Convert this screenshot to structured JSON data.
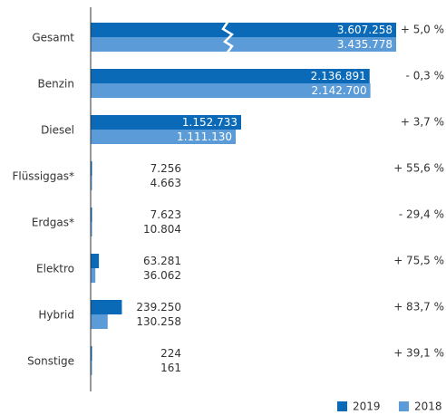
{
  "chart_data": {
    "type": "bar",
    "orientation": "horizontal",
    "categories": [
      "Gesamt",
      "Benzin",
      "Diesel",
      "Flüssiggas*",
      "Erdgas*",
      "Elektro",
      "Hybrid",
      "Sonstige"
    ],
    "series": [
      {
        "name": "2019",
        "color": "#0a6ab8",
        "values": [
          3607258,
          2136891,
          1152733,
          7256,
          7623,
          63281,
          239250,
          224
        ],
        "value_labels": [
          "3.607.258",
          "2.136.891",
          "1.152.733",
          "7.256",
          "7.623",
          "63.281",
          "239.250",
          "224"
        ]
      },
      {
        "name": "2018",
        "color": "#5b9bd8",
        "values": [
          3435778,
          2142700,
          1111130,
          4663,
          10804,
          36062,
          130258,
          161
        ],
        "value_labels": [
          "3.435.778",
          "2.142.700",
          "1.111.130",
          "4.663",
          "10.804",
          "36.062",
          "130.258",
          "161"
        ]
      }
    ],
    "annotations": [
      "+ 5,0 %",
      "- 0,3 %",
      "+ 3,7 %",
      "+ 55,6 %",
      "- 29,4 %",
      "+ 75,5 %",
      "+ 83,7 %",
      "+ 39,1 %"
    ],
    "xlim": [
      0,
      2340000
    ],
    "axis_break": true,
    "legend": "bottom-right"
  }
}
